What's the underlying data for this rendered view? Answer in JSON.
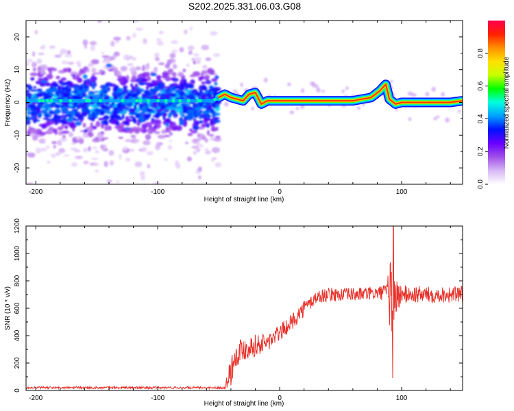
{
  "title": "S202.2025.331.06.03.G08",
  "colorbar": {
    "label": "Normalized spectral amplitude",
    "ticks": [
      "0.0",
      "0.2",
      "0.4",
      "0.6",
      "0.8"
    ],
    "tick_values": [
      0.0,
      0.2,
      0.4,
      0.6,
      0.8
    ],
    "range": [
      0.0,
      1.0
    ],
    "colormap": [
      "#ffffff",
      "#d8b8f5",
      "#a050e8",
      "#6a00ff",
      "#0010ff",
      "#00a0ff",
      "#00ffe0",
      "#00ff00",
      "#c8ff00",
      "#ffe000",
      "#ff9000",
      "#ff2000",
      "#ff0050"
    ]
  },
  "chart_data": [
    {
      "type": "heatmap",
      "xlabel": "Height of straight line (km)",
      "ylabel": "Frequency (Hz)",
      "xlim": [
        -208,
        150
      ],
      "ylim": [
        -25,
        25
      ],
      "x_ticks": [
        -200,
        -100,
        0,
        100
      ],
      "x_tick_labels": [
        "-200",
        "-100",
        "0",
        "100"
      ],
      "y_ticks": [
        -20,
        -10,
        0,
        10,
        20
      ],
      "y_tick_labels": [
        "-20",
        "-10",
        "0",
        "10",
        "20"
      ],
      "ridge": {
        "x": [
          -208,
          -55,
          -45,
          -40,
          -30,
          -25,
          -20,
          -15,
          -10,
          0,
          20,
          40,
          60,
          75,
          82,
          87,
          90,
          95,
          100,
          120,
          140,
          150
        ],
        "y": [
          0.5,
          0.5,
          2.5,
          1.5,
          0.5,
          2.5,
          3.0,
          -0.5,
          0.5,
          0.5,
          0.5,
          0.5,
          0.5,
          1.5,
          3.5,
          5.5,
          1.0,
          -0.5,
          0.0,
          0.0,
          0.0,
          0.5
        ]
      },
      "scatter_noise_region_x": [
        -208,
        -50
      ],
      "scatter_noise_spread_hz": 25
    },
    {
      "type": "line",
      "xlabel": "Height of straight line (km)",
      "ylabel": "SNR (10 * v/v)",
      "xlim": [
        -208,
        150
      ],
      "ylim": [
        0,
        1200
      ],
      "x_ticks": [
        -200,
        -100,
        0,
        100
      ],
      "x_tick_labels": [
        "-200",
        "-100",
        "0",
        "100"
      ],
      "y_ticks": [
        0,
        200,
        400,
        600,
        800,
        1000,
        1200
      ],
      "y_tick_labels": [
        "0",
        "200",
        "400",
        "600",
        "800",
        "1000",
        "1200"
      ],
      "color": "#e8312a",
      "series": [
        {
          "envelope_x": [
            -208,
            -45,
            -40,
            -35,
            -30,
            -25,
            -20,
            -10,
            0,
            10,
            20,
            30,
            40,
            60,
            80,
            88,
            92,
            95,
            100,
            120,
            150
          ],
          "envelope_mean": [
            20,
            20,
            150,
            280,
            300,
            320,
            330,
            350,
            420,
            500,
            600,
            680,
            700,
            700,
            710,
            720,
            700,
            680,
            700,
            700,
            700
          ],
          "envelope_noise": [
            8,
            8,
            120,
            100,
            90,
            90,
            80,
            70,
            60,
            60,
            60,
            50,
            50,
            50,
            50,
            60,
            400,
            150,
            70,
            60,
            60
          ],
          "spike_x": 93,
          "spike_max": 1200,
          "spike_min": 90
        }
      ]
    }
  ]
}
